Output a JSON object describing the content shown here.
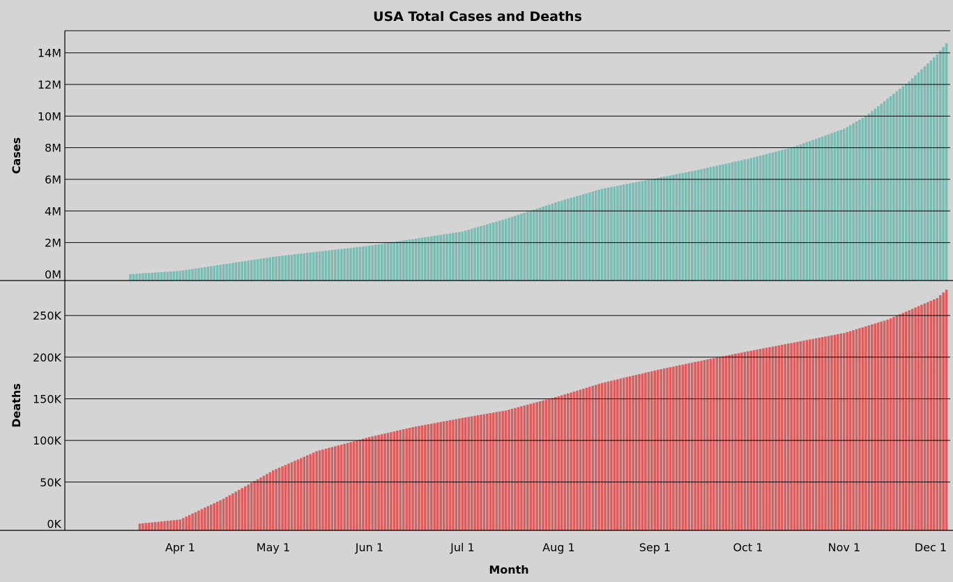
{
  "chart_data": {
    "type": "bar",
    "title": "USA Total Cases and Deaths",
    "xlabel": "Month",
    "x_tick_labels": [
      "Apr 1",
      "May 1",
      "Jun 1",
      "Jul 1",
      "Aug 1",
      "Sep 1",
      "Oct 1",
      "Nov 1",
      "Dec 1"
    ],
    "x_range": [
      "2020-03-16",
      "2020-12-04"
    ],
    "grid": true,
    "series": [
      {
        "name": "Cases",
        "ylabel": "Cases",
        "color": "#7bbcb4",
        "ylim": [
          -0.4,
          15.4
        ],
        "unit_suffix": "M",
        "y_ticks": [
          0,
          2,
          4,
          6,
          8,
          10,
          12,
          14
        ],
        "y_tick_labels": [
          "0M",
          "2M",
          "4M",
          "6M",
          "8M",
          "10M",
          "12M",
          "14M"
        ],
        "points": [
          [
            "2020-03-16",
            0.005
          ],
          [
            "2020-04-01",
            0.21
          ],
          [
            "2020-05-01",
            1.1
          ],
          [
            "2020-06-01",
            1.8
          ],
          [
            "2020-07-01",
            2.7
          ],
          [
            "2020-07-15",
            3.5
          ],
          [
            "2020-08-01",
            4.6
          ],
          [
            "2020-08-15",
            5.4
          ],
          [
            "2020-09-01",
            6.05
          ],
          [
            "2020-09-15",
            6.6
          ],
          [
            "2020-10-01",
            7.3
          ],
          [
            "2020-10-15",
            8.0
          ],
          [
            "2020-11-01",
            9.2
          ],
          [
            "2020-11-08",
            10.0
          ],
          [
            "2020-11-15",
            11.1
          ],
          [
            "2020-11-22",
            12.2
          ],
          [
            "2020-12-01",
            13.9
          ],
          [
            "2020-12-04",
            14.6
          ]
        ]
      },
      {
        "name": "Deaths",
        "ylabel": "Deaths",
        "color": "#dc5d5d",
        "ylim": [
          -8000,
          292000
        ],
        "unit_suffix": "K",
        "y_ticks": [
          0,
          50000,
          100000,
          150000,
          200000,
          250000
        ],
        "y_tick_labels": [
          "0K",
          "50K",
          "100K",
          "150K",
          "200K",
          "250K"
        ],
        "points": [
          [
            "2020-03-19",
            100
          ],
          [
            "2020-04-01",
            5000
          ],
          [
            "2020-04-15",
            30000
          ],
          [
            "2020-05-01",
            64000
          ],
          [
            "2020-05-15",
            87000
          ],
          [
            "2020-06-01",
            104000
          ],
          [
            "2020-06-15",
            116000
          ],
          [
            "2020-07-01",
            127000
          ],
          [
            "2020-07-15",
            136000
          ],
          [
            "2020-08-01",
            153000
          ],
          [
            "2020-08-15",
            169000
          ],
          [
            "2020-09-01",
            184000
          ],
          [
            "2020-09-15",
            195000
          ],
          [
            "2020-10-01",
            207000
          ],
          [
            "2020-10-15",
            217000
          ],
          [
            "2020-11-01",
            229000
          ],
          [
            "2020-11-15",
            245000
          ],
          [
            "2020-12-01",
            271000
          ],
          [
            "2020-12-04",
            281000
          ]
        ]
      }
    ]
  }
}
